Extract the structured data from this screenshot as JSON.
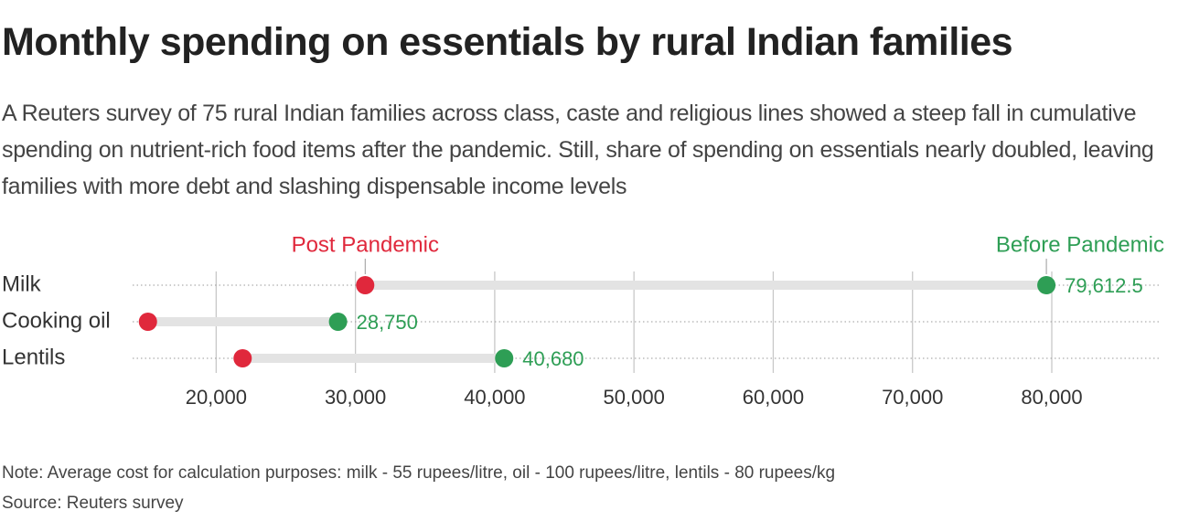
{
  "chart_data": {
    "type": "dumbbell",
    "title": "Monthly spending on essentials by rural Indian families",
    "subtitle": "A Reuters survey of 75 rural Indian families across class, caste and religious lines showed a steep fall in cumulative spending on nutrient-rich food items after the pandemic. Still, share of spending on essentials nearly doubled, leaving families with more debt and slashing dispensable income levels",
    "categories": [
      "Milk",
      "Cooking oil",
      "Lentils"
    ],
    "series": [
      {
        "name": "Post Pandemic",
        "color": "#e0283c",
        "values": [
          30700,
          15100,
          21900
        ]
      },
      {
        "name": "Before Pandemic",
        "color": "#2e9e55",
        "values": [
          79612.5,
          28750,
          40680
        ],
        "value_labels": [
          "79,612.5",
          "28,750",
          "40,680"
        ]
      }
    ],
    "xlim": [
      14000,
      87750
    ],
    "xticks": [
      {
        "value": 20000,
        "label": "20,000"
      },
      {
        "value": 30000,
        "label": "30,000"
      },
      {
        "value": 40000,
        "label": "40,000"
      },
      {
        "value": 50000,
        "label": "50,000"
      },
      {
        "value": 60000,
        "label": "60,000"
      },
      {
        "value": 70000,
        "label": "70,000"
      },
      {
        "value": 80000,
        "label": "80,000"
      }
    ],
    "grid": true,
    "note": "Note: Average cost for calculation purposes: milk - 55 rupees/litre, oil - 100 rupees/litre, lentils - 80 rupees/kg",
    "source": "Source: Reuters survey"
  }
}
